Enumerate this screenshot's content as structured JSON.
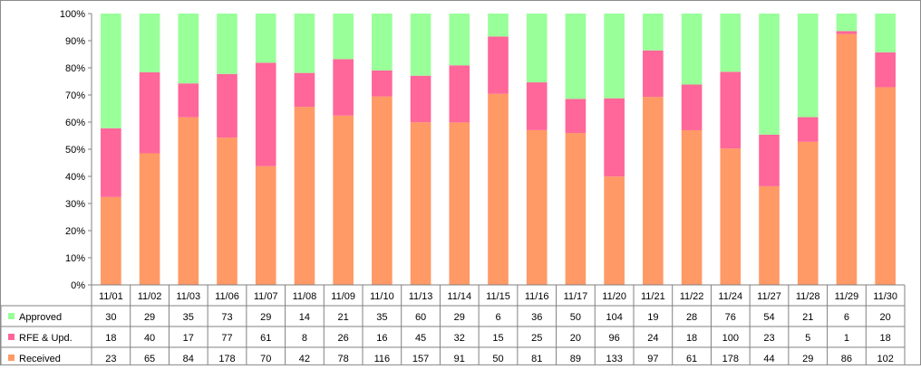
{
  "chart_data": {
    "type": "bar",
    "stacked": "percent",
    "categories": [
      "11/01",
      "11/02",
      "11/03",
      "11/06",
      "11/07",
      "11/08",
      "11/09",
      "11/10",
      "11/13",
      "11/14",
      "11/15",
      "11/16",
      "11/17",
      "11/20",
      "11/21",
      "11/22",
      "11/24",
      "11/27",
      "11/28",
      "11/29",
      "11/30"
    ],
    "y_ticks": [
      "0%",
      "10%",
      "20%",
      "30%",
      "40%",
      "50%",
      "60%",
      "70%",
      "80%",
      "90%",
      "100%"
    ],
    "ylim": [
      0,
      100
    ],
    "grid": false,
    "legend_placement": "data-table",
    "series": [
      {
        "name": "Approved",
        "color": "#99ff99",
        "values": [
          30,
          29,
          35,
          73,
          29,
          14,
          21,
          35,
          60,
          29,
          6,
          36,
          50,
          104,
          19,
          28,
          76,
          54,
          21,
          6,
          20
        ]
      },
      {
        "name": "RFE & Upd.",
        "color": "#ff6699",
        "values": [
          18,
          40,
          17,
          77,
          61,
          8,
          26,
          16,
          45,
          32,
          15,
          25,
          20,
          96,
          24,
          18,
          100,
          23,
          5,
          1,
          18
        ]
      },
      {
        "name": "Received",
        "color": "#ff9966",
        "values": [
          23,
          65,
          84,
          178,
          70,
          42,
          78,
          116,
          157,
          91,
          50,
          81,
          89,
          133,
          97,
          61,
          178,
          44,
          29,
          86,
          102
        ]
      }
    ]
  }
}
